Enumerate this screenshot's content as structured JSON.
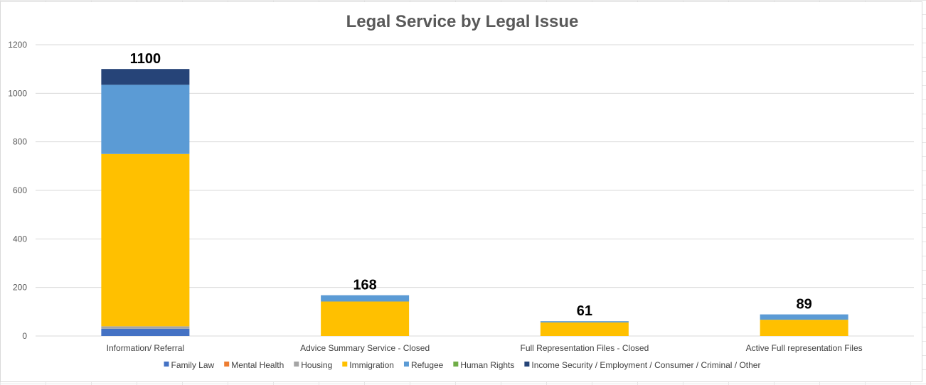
{
  "chart_data": {
    "type": "bar",
    "stacked": true,
    "title": "Legal Service by Legal Issue",
    "xlabel": "",
    "ylabel": "",
    "ylim": [
      0,
      1200
    ],
    "yticks": [
      0,
      200,
      400,
      600,
      800,
      1000,
      1200
    ],
    "grid": true,
    "legend_position": "bottom",
    "categories": [
      "Information/ Referral",
      "Advice Summary Service - Closed",
      "Full Representation Files - Closed",
      "Active Full representation Files"
    ],
    "totals": [
      1100,
      168,
      61,
      89
    ],
    "series": [
      {
        "name": "Family Law",
        "color": "#4472c4",
        "values": [
          30,
          0,
          0,
          0
        ]
      },
      {
        "name": "Mental Health",
        "color": "#ed7d31",
        "values": [
          0,
          0,
          0,
          0
        ]
      },
      {
        "name": "Housing",
        "color": "#a5a5a5",
        "values": [
          10,
          0,
          0,
          0
        ]
      },
      {
        "name": "Immigration",
        "color": "#ffc000",
        "values": [
          710,
          142,
          56,
          67
        ]
      },
      {
        "name": "Refugee",
        "color": "#5b9bd5",
        "values": [
          285,
          26,
          5,
          22
        ]
      },
      {
        "name": "Human Rights",
        "color": "#70ad47",
        "values": [
          0,
          0,
          0,
          0
        ]
      },
      {
        "name": "Income Security / Employment / Consumer / Criminal / Other",
        "color": "#264478",
        "values": [
          65,
          0,
          0,
          0
        ]
      }
    ]
  }
}
